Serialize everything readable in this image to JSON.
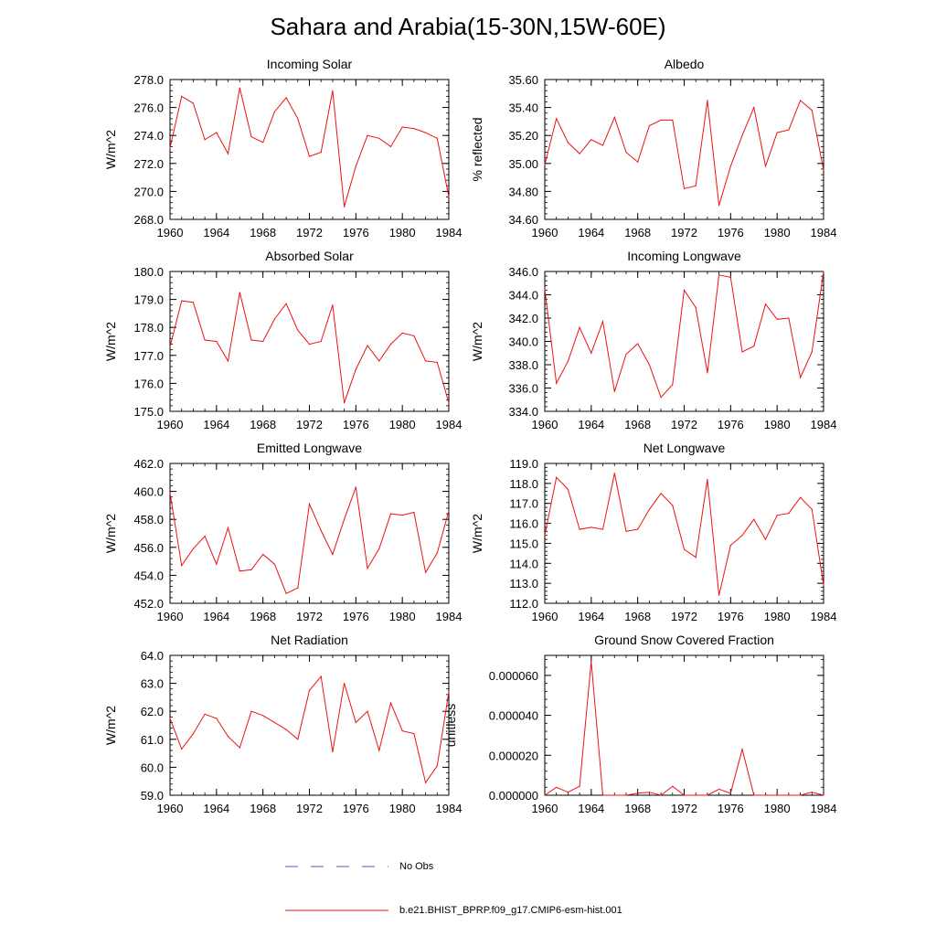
{
  "title": "Sahara and Arabia(15-30N,15W-60E)",
  "colors": {
    "series": "#ee1111",
    "obs": "#5555cc",
    "axis": "#000000"
  },
  "legend": {
    "obs_label": "No Obs",
    "series_label": "b.e21.BHIST_BPRP.f09_g17.CMIP6-esm-hist.001"
  },
  "chart_data": [
    {
      "type": "line",
      "title": "Incoming Solar",
      "ylabel": "W/m^2",
      "xlim": [
        1960,
        1984
      ],
      "ylim": [
        268,
        278
      ],
      "xticks": [
        1960,
        1964,
        1968,
        1972,
        1976,
        1980,
        1984
      ],
      "yticks": [
        "268.0",
        "270.0",
        "272.0",
        "274.0",
        "276.0",
        "278.0"
      ],
      "x": [
        1960,
        1961,
        1962,
        1963,
        1964,
        1965,
        1966,
        1967,
        1968,
        1969,
        1970,
        1971,
        1972,
        1973,
        1974,
        1975,
        1976,
        1977,
        1978,
        1979,
        1980,
        1981,
        1982,
        1983,
        1984
      ],
      "values": [
        273.1,
        276.8,
        276.3,
        273.7,
        274.2,
        272.7,
        277.4,
        273.9,
        273.5,
        275.7,
        276.7,
        275.2,
        272.5,
        272.8,
        277.2,
        268.9,
        271.8,
        274.0,
        273.8,
        273.2,
        274.6,
        274.5,
        274.2,
        273.8,
        269.6
      ]
    },
    {
      "type": "line",
      "title": "Albedo",
      "ylabel": "% reflected",
      "xlim": [
        1960,
        1984
      ],
      "ylim": [
        34.6,
        35.6
      ],
      "xticks": [
        1960,
        1964,
        1968,
        1972,
        1976,
        1980,
        1984
      ],
      "yticks": [
        "34.60",
        "34.80",
        "35.00",
        "35.20",
        "35.40",
        "35.60"
      ],
      "x": [
        1960,
        1961,
        1962,
        1963,
        1964,
        1965,
        1966,
        1967,
        1968,
        1969,
        1970,
        1971,
        1972,
        1973,
        1974,
        1975,
        1976,
        1977,
        1978,
        1979,
        1980,
        1981,
        1982,
        1983,
        1984
      ],
      "values": [
        34.99,
        35.32,
        35.15,
        35.07,
        35.17,
        35.13,
        35.33,
        35.08,
        35.01,
        35.27,
        35.31,
        35.31,
        34.82,
        34.84,
        35.45,
        34.7,
        34.98,
        35.2,
        35.4,
        34.98,
        35.22,
        35.24,
        35.45,
        35.38,
        34.95
      ]
    },
    {
      "type": "line",
      "title": "Absorbed Solar",
      "ylabel": "W/m^2",
      "xlim": [
        1960,
        1984
      ],
      "ylim": [
        175,
        180
      ],
      "xticks": [
        1960,
        1964,
        1968,
        1972,
        1976,
        1980,
        1984
      ],
      "yticks": [
        "175.0",
        "176.0",
        "177.0",
        "178.0",
        "179.0",
        "180.0"
      ],
      "x": [
        1960,
        1961,
        1962,
        1963,
        1964,
        1965,
        1966,
        1967,
        1968,
        1969,
        1970,
        1971,
        1972,
        1973,
        1974,
        1975,
        1976,
        1977,
        1978,
        1979,
        1980,
        1981,
        1982,
        1983,
        1984
      ],
      "values": [
        177.3,
        178.95,
        178.9,
        177.55,
        177.5,
        176.8,
        179.25,
        177.55,
        177.5,
        178.3,
        178.85,
        177.9,
        177.4,
        177.5,
        178.8,
        175.3,
        176.5,
        177.35,
        176.8,
        177.4,
        177.8,
        177.7,
        176.8,
        176.75,
        175.3
      ]
    },
    {
      "type": "line",
      "title": "Incoming Longwave",
      "ylabel": "W/m^2",
      "xlim": [
        1960,
        1984
      ],
      "ylim": [
        334,
        346
      ],
      "xticks": [
        1960,
        1964,
        1968,
        1972,
        1976,
        1980,
        1984
      ],
      "yticks": [
        "334.0",
        "336.0",
        "338.0",
        "340.0",
        "342.0",
        "344.0",
        "346.0"
      ],
      "x": [
        1960,
        1961,
        1962,
        1963,
        1964,
        1965,
        1966,
        1967,
        1968,
        1969,
        1970,
        1971,
        1972,
        1973,
        1974,
        1975,
        1976,
        1977,
        1978,
        1979,
        1980,
        1981,
        1982,
        1983,
        1984
      ],
      "values": [
        344.5,
        336.4,
        338.3,
        341.2,
        339.0,
        341.7,
        335.7,
        338.9,
        339.8,
        338.0,
        335.2,
        336.3,
        344.4,
        342.9,
        337.3,
        345.7,
        345.5,
        339.1,
        339.6,
        343.2,
        341.9,
        342.0,
        336.9,
        339.1,
        346.0
      ]
    },
    {
      "type": "line",
      "title": "Emitted Longwave",
      "ylabel": "W/m^2",
      "xlim": [
        1960,
        1984
      ],
      "ylim": [
        452,
        462
      ],
      "xticks": [
        1960,
        1964,
        1968,
        1972,
        1976,
        1980,
        1984
      ],
      "yticks": [
        "452.0",
        "454.0",
        "456.0",
        "458.0",
        "460.0",
        "462.0"
      ],
      "x": [
        1960,
        1961,
        1962,
        1963,
        1964,
        1965,
        1966,
        1967,
        1968,
        1969,
        1970,
        1971,
        1972,
        1973,
        1974,
        1975,
        1976,
        1977,
        1978,
        1979,
        1980,
        1981,
        1982,
        1983,
        1984
      ],
      "values": [
        459.9,
        454.7,
        455.9,
        456.8,
        454.8,
        457.4,
        454.3,
        454.4,
        455.5,
        454.8,
        452.7,
        453.1,
        459.1,
        457.2,
        455.5,
        458.0,
        460.3,
        454.5,
        455.9,
        458.4,
        458.3,
        458.5,
        454.2,
        455.6,
        458.6
      ]
    },
    {
      "type": "line",
      "title": "Net Longwave",
      "ylabel": "W/m^2",
      "xlim": [
        1960,
        1984
      ],
      "ylim": [
        112,
        119
      ],
      "xticks": [
        1960,
        1964,
        1968,
        1972,
        1976,
        1980,
        1984
      ],
      "yticks": [
        "112.0",
        "113.0",
        "114.0",
        "115.0",
        "116.0",
        "117.0",
        "118.0",
        "119.0"
      ],
      "x": [
        1960,
        1961,
        1962,
        1963,
        1964,
        1965,
        1966,
        1967,
        1968,
        1969,
        1970,
        1971,
        1972,
        1973,
        1974,
        1975,
        1976,
        1977,
        1978,
        1979,
        1980,
        1981,
        1982,
        1983,
        1984
      ],
      "values": [
        115.4,
        118.3,
        117.7,
        115.7,
        115.8,
        115.7,
        118.5,
        115.6,
        115.7,
        116.7,
        117.5,
        116.9,
        114.7,
        114.3,
        118.2,
        112.4,
        114.9,
        115.4,
        116.2,
        115.2,
        116.4,
        116.5,
        117.3,
        116.7,
        112.9
      ]
    },
    {
      "type": "line",
      "title": "Net Radiation",
      "ylabel": "W/m^2",
      "xlim": [
        1960,
        1984
      ],
      "ylim": [
        59,
        64
      ],
      "xticks": [
        1960,
        1964,
        1968,
        1972,
        1976,
        1980,
        1984
      ],
      "yticks": [
        "59.0",
        "60.0",
        "61.0",
        "62.0",
        "63.0",
        "64.0"
      ],
      "x": [
        1960,
        1961,
        1962,
        1963,
        1964,
        1965,
        1966,
        1967,
        1968,
        1969,
        1970,
        1971,
        1972,
        1973,
        1974,
        1975,
        1976,
        1977,
        1978,
        1979,
        1980,
        1981,
        1982,
        1983,
        1984
      ],
      "values": [
        61.75,
        60.65,
        61.2,
        61.9,
        61.75,
        61.1,
        60.7,
        62.0,
        61.85,
        61.6,
        61.35,
        61.0,
        62.75,
        63.25,
        60.55,
        63.0,
        61.6,
        62.0,
        60.6,
        62.3,
        61.3,
        61.2,
        59.45,
        60.05,
        62.7
      ]
    },
    {
      "type": "line",
      "title": "Ground Snow Covered Fraction",
      "ylabel": "unitless",
      "xlim": [
        1960,
        1984
      ],
      "ylim": [
        0,
        7e-05
      ],
      "xticks": [
        1960,
        1964,
        1968,
        1972,
        1976,
        1980,
        1984
      ],
      "yticks": [
        "0.000000",
        "0.000020",
        "0.000040",
        "0.000060"
      ],
      "ytick_values": [
        0,
        2e-05,
        4e-05,
        6e-05
      ],
      "x": [
        1960,
        1961,
        1962,
        1963,
        1964,
        1965,
        1966,
        1967,
        1968,
        1969,
        1970,
        1971,
        1972,
        1973,
        1974,
        1975,
        1976,
        1977,
        1978,
        1979,
        1980,
        1981,
        1982,
        1983,
        1984
      ],
      "values": [
        0.0,
        4e-06,
        1.5e-06,
        4.5e-06,
        6.7e-05,
        0.0,
        0.0,
        0.0,
        1e-06,
        1.5e-06,
        0.0,
        4.5e-06,
        0.0,
        0.0,
        0.0,
        3e-06,
        1e-06,
        2.3e-05,
        0.0,
        0.0,
        0.0,
        0.0,
        0.0,
        1.5e-06,
        0.0
      ]
    }
  ]
}
